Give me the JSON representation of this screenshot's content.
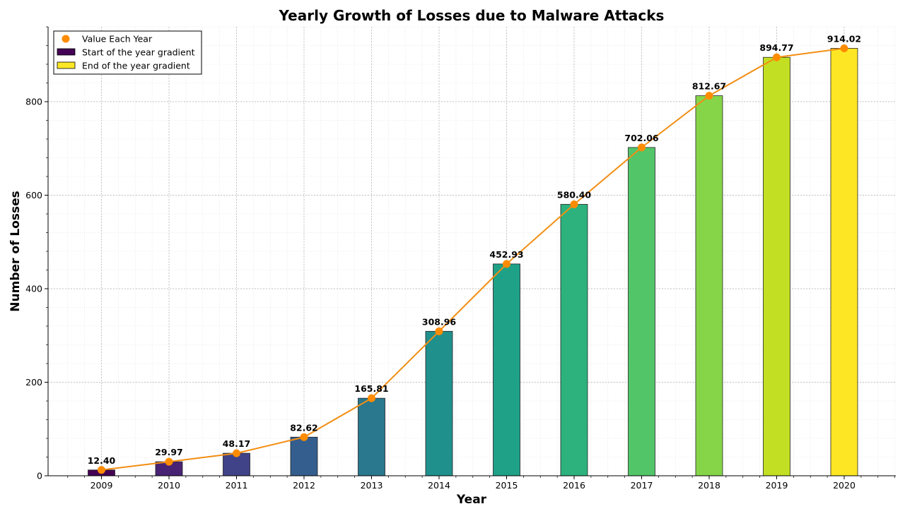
{
  "chart_data": {
    "type": "bar",
    "title": "Yearly Growth of Losses due to Malware Attacks",
    "xlabel": "Year",
    "ylabel": "Number of Losses",
    "categories": [
      "2009",
      "2010",
      "2011",
      "2012",
      "2013",
      "2014",
      "2015",
      "2016",
      "2017",
      "2018",
      "2019",
      "2020"
    ],
    "values": [
      12.4,
      29.97,
      48.17,
      82.62,
      165.81,
      308.96,
      452.93,
      580.4,
      702.06,
      812.67,
      894.77,
      914.02
    ],
    "value_labels": [
      "12.40",
      "29.97",
      "48.17",
      "82.62",
      "165.81",
      "308.96",
      "452.93",
      "580.40",
      "702.06",
      "812.67",
      "894.77",
      "914.02"
    ],
    "ylim": [
      0,
      960
    ],
    "yticks": [
      0,
      200,
      400,
      600,
      800
    ],
    "ytick_labels": [
      "0",
      "200",
      "400",
      "600",
      "800"
    ],
    "grid": true,
    "colormap": "viridis",
    "bar_colors": [
      "#440154",
      "#482374",
      "#404387",
      "#345e8d",
      "#29788e",
      "#20908d",
      "#1fa187",
      "#2db27d",
      "#52c569",
      "#86d549",
      "#c2df23",
      "#fde725"
    ],
    "line": {
      "name": "Value Each Year",
      "color": "#f28e14",
      "marker_color": "#ff8c00"
    },
    "legend": {
      "placement": "top-left",
      "entries": [
        {
          "label": "Value Each Year",
          "kind": "marker",
          "color": "#ff8c00"
        },
        {
          "label": "Start of the year gradient",
          "kind": "patch",
          "color": "#440154"
        },
        {
          "label": "End of the year gradient",
          "kind": "patch",
          "color": "#fde725"
        }
      ]
    }
  }
}
